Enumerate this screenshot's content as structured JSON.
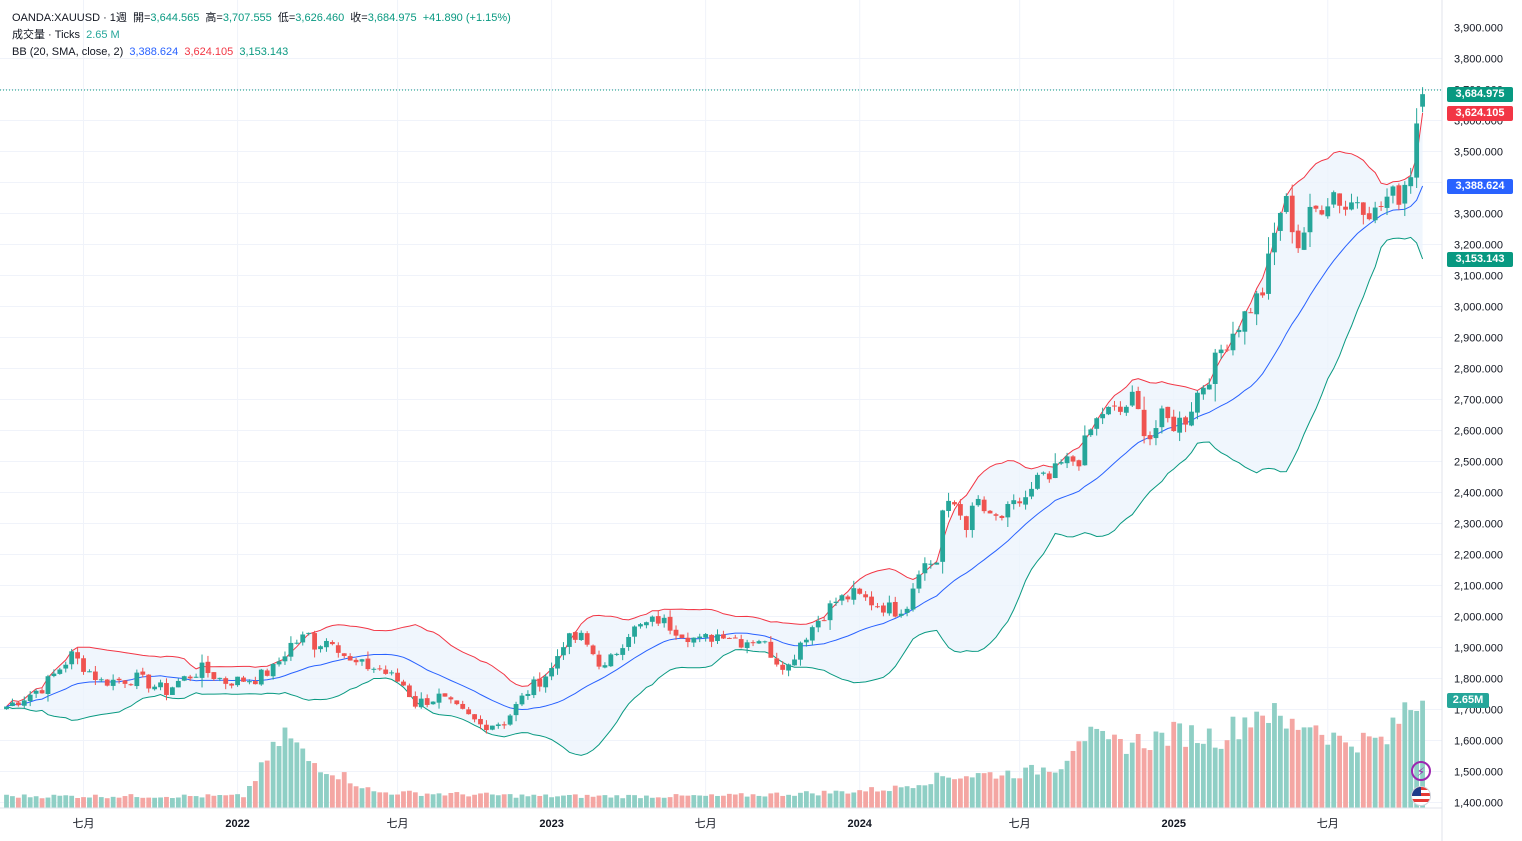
{
  "colors": {
    "up": "#26a69a",
    "down": "#ef5350",
    "vol_up": "#8fcfc5",
    "vol_down": "#f4a6a3",
    "bb_mid": "#2962ff",
    "bb_upper": "#f23645",
    "bb_lower": "#089981",
    "fill": "#eaf2fc"
  },
  "legend": {
    "symbol": "OANDA:XAUUSD · 1週",
    "open_label": "開=",
    "open": "3,644.565",
    "high_label": "高=",
    "high": "3,707.555",
    "low_label": "低=",
    "low": "3,626.460",
    "close_label": "收=",
    "close": "3,684.975",
    "change": "+41.890 (+1.15%)",
    "volume_label": "成交量 · Ticks",
    "volume": "2.65 M",
    "bb_label": "BB (20, SMA, close, 2)",
    "bb_mid": "3,388.624",
    "bb_upper": "3,624.105",
    "bb_lower": "3,153.143"
  },
  "badges": {
    "close": "3,684.975",
    "upper": "3,624.105",
    "mid": "3,388.624",
    "lower": "3,153.143",
    "volume": "2.65M"
  },
  "icons": [
    "lightning-icon",
    "us-flag-icon"
  ],
  "chart_data": {
    "type": "candlestick",
    "title": "OANDA:XAUUSD · 1週",
    "x_tick_labels": [
      "七月",
      "2022",
      "七月",
      "2023",
      "七月",
      "2024",
      "七月",
      "2025",
      "七月"
    ],
    "x_tick_week_index": [
      13,
      39,
      66,
      92,
      118,
      144,
      171,
      197,
      223
    ],
    "y_tick_labels": [
      "3,900.000",
      "3,800.000",
      "3,700.000",
      "3,600.000",
      "3,500.000",
      "3,400.000",
      "3,300.000",
      "3,200.000",
      "3,100.000",
      "3,000.000",
      "2,900.000",
      "2,800.000",
      "2,700.000",
      "2,600.000",
      "2,500.000",
      "2,400.000",
      "2,300.000",
      "2,200.000",
      "2,100.000",
      "2,000.000",
      "1,900.000",
      "1,800.000",
      "1,700.000",
      "1,600.000",
      "1,500.000",
      "1,400.000"
    ],
    "ylim": [
      1350,
      3950
    ],
    "period": "1W",
    "weeks": 240,
    "price_anchors": [
      [
        0,
        1710
      ],
      [
        6,
        1770
      ],
      [
        11,
        1875
      ],
      [
        13,
        1840
      ],
      [
        16,
        1790
      ],
      [
        22,
        1800
      ],
      [
        27,
        1760
      ],
      [
        29,
        1790
      ],
      [
        33,
        1830
      ],
      [
        37,
        1790
      ],
      [
        42,
        1800
      ],
      [
        45,
        1830
      ],
      [
        48,
        1910
      ],
      [
        51,
        1940
      ],
      [
        52,
        1910
      ],
      [
        55,
        1930
      ],
      [
        58,
        1850
      ],
      [
        63,
        1830
      ],
      [
        67,
        1780
      ],
      [
        69,
        1720
      ],
      [
        73,
        1740
      ],
      [
        76,
        1700
      ],
      [
        80,
        1650
      ],
      [
        84,
        1660
      ],
      [
        88,
        1760
      ],
      [
        92,
        1830
      ],
      [
        94,
        1920
      ],
      [
        97,
        1930
      ],
      [
        101,
        1830
      ],
      [
        105,
        1950
      ],
      [
        110,
        1990
      ],
      [
        113,
        1960
      ],
      [
        117,
        1920
      ],
      [
        121,
        1950
      ],
      [
        124,
        1920
      ],
      [
        127,
        1930
      ],
      [
        130,
        1860
      ],
      [
        132,
        1840
      ],
      [
        134,
        1920
      ],
      [
        137,
        1990
      ],
      [
        140,
        2050
      ],
      [
        143,
        2070
      ],
      [
        147,
        2040
      ],
      [
        150,
        2020
      ],
      [
        152,
        2040
      ],
      [
        154,
        2160
      ],
      [
        157,
        2180
      ],
      [
        158,
        2340
      ],
      [
        160,
        2360
      ],
      [
        162,
        2300
      ],
      [
        164,
        2370
      ],
      [
        166,
        2310
      ],
      [
        168,
        2320
      ],
      [
        171,
        2370
      ],
      [
        173,
        2400
      ],
      [
        174,
        2440
      ],
      [
        176,
        2440
      ],
      [
        178,
        2490
      ],
      [
        181,
        2510
      ],
      [
        183,
        2600
      ],
      [
        185,
        2660
      ],
      [
        188,
        2660
      ],
      [
        190,
        2700
      ],
      [
        192,
        2610
      ],
      [
        193,
        2580
      ],
      [
        195,
        2640
      ],
      [
        197,
        2620
      ],
      [
        199,
        2640
      ],
      [
        201,
        2720
      ],
      [
        203,
        2780
      ],
      [
        205,
        2860
      ],
      [
        207,
        2920
      ],
      [
        210,
        3000
      ],
      [
        212,
        3050
      ],
      [
        214,
        3230
      ],
      [
        215,
        3310
      ],
      [
        216,
        3330
      ],
      [
        218,
        3200
      ],
      [
        220,
        3290
      ],
      [
        222,
        3330
      ],
      [
        224,
        3370
      ],
      [
        226,
        3320
      ],
      [
        228,
        3350
      ],
      [
        231,
        3300
      ],
      [
        233,
        3350
      ],
      [
        235,
        3360
      ],
      [
        237,
        3440
      ],
      [
        238,
        3600
      ],
      [
        239,
        3685
      ]
    ],
    "volume_anchors_M": [
      [
        0,
        0.3
      ],
      [
        40,
        0.3
      ],
      [
        47,
        1.9
      ],
      [
        51,
        1.2
      ],
      [
        57,
        0.8
      ],
      [
        62,
        0.4
      ],
      [
        90,
        0.3
      ],
      [
        120,
        0.3
      ],
      [
        140,
        0.4
      ],
      [
        150,
        0.5
      ],
      [
        158,
        0.8
      ],
      [
        172,
        0.9
      ],
      [
        178,
        1.1
      ],
      [
        181,
        1.9
      ],
      [
        186,
        1.6
      ],
      [
        192,
        1.7
      ],
      [
        198,
        1.9
      ],
      [
        205,
        1.8
      ],
      [
        212,
        2.55
      ],
      [
        216,
        2.05
      ],
      [
        220,
        2.2
      ],
      [
        225,
        1.7
      ],
      [
        233,
        1.7
      ],
      [
        236,
        2.5
      ],
      [
        239,
        2.65
      ]
    ],
    "last_candle": {
      "open": 3644.565,
      "high": 3707.555,
      "low": 3626.46,
      "close": 3684.975
    },
    "bollinger": {
      "period": 20,
      "stdev": 2,
      "source": "close",
      "last_basis": 3388.624,
      "last_upper": 3624.105,
      "last_lower": 3153.143
    },
    "volume_unit": "M ticks",
    "last_volume_M": 2.65
  }
}
